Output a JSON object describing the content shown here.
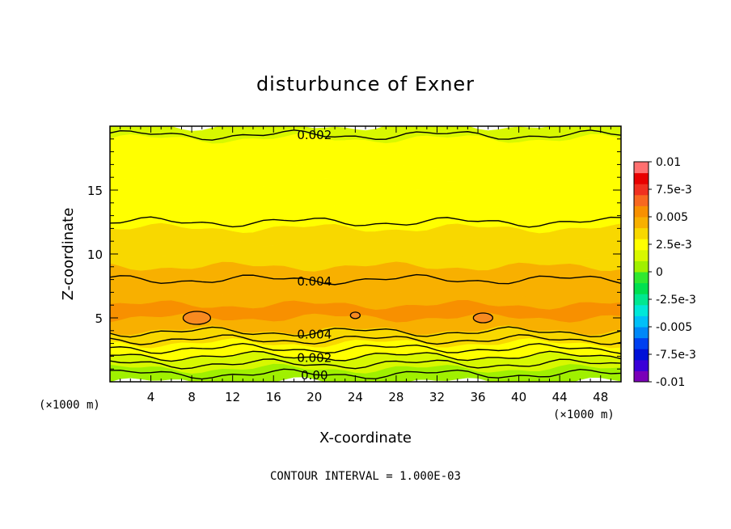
{
  "chart_data": {
    "type": "heatmap",
    "title": "disturbunce of Exner",
    "xlabel": "X-coordinate",
    "ylabel": "Z-coordinate",
    "x_unit": "(×1000 m)",
    "footer": "CONTOUR INTERVAL = 1.000E-03",
    "xlim": [
      0,
      50
    ],
    "ylim": [
      0,
      20
    ],
    "x_ticks": [
      4,
      8,
      12,
      16,
      20,
      24,
      28,
      32,
      36,
      40,
      44,
      48
    ],
    "y_ticks": [
      5,
      10,
      15
    ],
    "contour_interval": 0.001,
    "colorbar": {
      "range": [
        -0.01,
        0.01
      ],
      "tick_values": [
        0.01,
        0.0075,
        0.005,
        0.0025,
        0,
        -0.0025,
        -0.005,
        -0.0075,
        -0.01
      ],
      "tick_labels": [
        "0.01",
        "7.5e-3",
        "0.005",
        "2.5e-3",
        "0",
        "-2.5e-3",
        "-0.005",
        "-7.5e-3",
        "-0.01"
      ],
      "colors": [
        "#7a00b8",
        "#3a00d8",
        "#0010d8",
        "#0040f0",
        "#0088f8",
        "#00c0f8",
        "#00e8d8",
        "#00e890",
        "#00e050",
        "#30e830",
        "#a0f000",
        "#d8f800",
        "#ffff00",
        "#f8d800",
        "#f8b000",
        "#f89000",
        "#f86820",
        "#f03020",
        "#e80000",
        "#ff7070"
      ]
    },
    "z_profile": {
      "z": [
        0.0,
        0.5,
        1.0,
        1.5,
        2.0,
        2.5,
        3.0,
        3.5,
        4.0,
        5.0,
        6.0,
        7.0,
        8.0,
        9.0,
        10.0,
        11.0,
        12.0,
        13.0,
        14.0,
        15.0,
        16.0,
        17.0,
        18.0,
        19.0,
        20.0
      ],
      "value": [
        -0.0002,
        0.0004,
        0.001,
        0.0015,
        0.002,
        0.0026,
        0.0032,
        0.0037,
        0.0041,
        0.0049,
        0.0052,
        0.0047,
        0.0042,
        0.0038,
        0.0036,
        0.0033,
        0.003,
        0.0027,
        0.0025,
        0.0024,
        0.0023,
        0.0022,
        0.0021,
        0.002,
        0.0019
      ]
    },
    "contour_lines": [
      {
        "z": 19.3,
        "label": "0.002"
      },
      {
        "z": 12.5,
        "label": ""
      },
      {
        "z": 8.0,
        "label": "0.004"
      },
      {
        "z": 3.9,
        "label": "0.004"
      },
      {
        "z": 3.3,
        "label": ""
      },
      {
        "z": 2.6,
        "label": ""
      },
      {
        "z": 2.0,
        "label": "0.002"
      },
      {
        "z": 1.4,
        "label": ""
      },
      {
        "z": 0.6,
        "label": "0.00"
      }
    ],
    "local_maxima": [
      {
        "x": 8.5,
        "z": 5.0
      },
      {
        "x": 24.0,
        "z": 5.2
      },
      {
        "x": 36.5,
        "z": 5.0
      }
    ]
  }
}
